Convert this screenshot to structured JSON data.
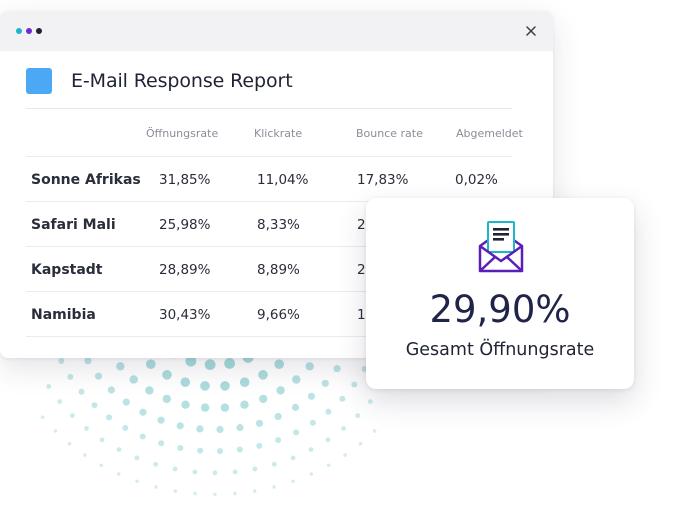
{
  "window": {
    "traffic_dot_colors": [
      "#1fb5c9",
      "#6a2bd8",
      "#1f2333"
    ],
    "close_icon": "close-icon"
  },
  "report": {
    "title": "E-Mail Response Report",
    "icon_color": "#4aa8f5",
    "columns": [
      "Öffnungsrate",
      "Klickrate",
      "Bounce rate",
      "Abgemeldet"
    ],
    "rows": [
      {
        "name": "Sonne Afrikas",
        "values": [
          "31,85%",
          "11,04%",
          "17,83%",
          "0,02%"
        ]
      },
      {
        "name": "Safari Mali",
        "values": [
          "25,98%",
          "8,33%",
          "2",
          ""
        ]
      },
      {
        "name": "Kapstadt",
        "values": [
          "28,89%",
          "8,89%",
          "2",
          ""
        ]
      },
      {
        "name": "Namibia",
        "values": [
          "30,43%",
          "9,66%",
          "1",
          ""
        ]
      }
    ]
  },
  "summary": {
    "value": "29,90%",
    "label": "Gesamt Öffnungsrate",
    "icon": "open-envelope-icon"
  },
  "decoration": {
    "dot_color": "#8ccfd0"
  }
}
